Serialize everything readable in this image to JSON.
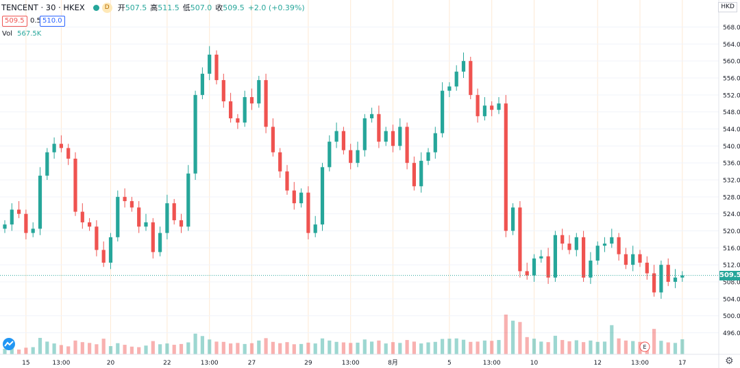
{
  "header": {
    "symbol": "TENCENT · 30 · HKEX",
    "d_label": "D",
    "open_label": "开",
    "open_value": "507.5",
    "high_label": "高",
    "high_value": "511.5",
    "low_label": "低",
    "low_value": "507.0",
    "close_label": "收",
    "close_value": "509.5",
    "change": "+2.0 (+0.39%)"
  },
  "bid": "509.5",
  "spread": "0.5",
  "ask": "510.0",
  "volume": {
    "label": "Vol",
    "value": "567.5K"
  },
  "currency": "HKD",
  "last_price_label": "509.5",
  "event_marker": "E",
  "colors": {
    "up": "#26a69a",
    "down": "#ef5350",
    "grid": "#f0f3fa",
    "session": "#fde9d4",
    "text": "#131722"
  },
  "chart_data": {
    "type": "candlestick",
    "title": "TENCENT · 30 · HKEX",
    "ylabel": "HKD",
    "ylim": [
      493.5,
      570.5
    ],
    "y_ticks": [
      496.0,
      500.0,
      504.0,
      508.0,
      512.0,
      516.0,
      520.0,
      524.0,
      528.0,
      532.0,
      536.0,
      540.0,
      544.0,
      548.0,
      552.0,
      556.0,
      560.0,
      564.0,
      568.0
    ],
    "x_ticks": [
      {
        "label": "15",
        "i": 3
      },
      {
        "label": "13:00",
        "i": 8
      },
      {
        "label": "20",
        "i": 15
      },
      {
        "label": "22",
        "i": 23
      },
      {
        "label": "13:00",
        "i": 29
      },
      {
        "label": "27",
        "i": 35
      },
      {
        "label": "29",
        "i": 43
      },
      {
        "label": "13:00",
        "i": 49
      },
      {
        "label": "8月",
        "i": 55
      },
      {
        "label": "5",
        "i": 63
      },
      {
        "label": "13:00",
        "i": 69
      },
      {
        "label": "10",
        "i": 75
      },
      {
        "label": "12",
        "i": 84
      },
      {
        "label": "13:00",
        "i": 90
      },
      {
        "label": "17",
        "i": 96
      }
    ],
    "last_price": 509.5,
    "closes": [
      521.5,
      525.0,
      524.0,
      519.5,
      520.5,
      533.0,
      538.5,
      540.5,
      539.5,
      537.0,
      524.5,
      522.0,
      521.0,
      515.5,
      512.5,
      518.5,
      528.0,
      527.0,
      525.5,
      521.0,
      522.0,
      515.0,
      519.5,
      526.5,
      522.5,
      521.0,
      533.5,
      552.0,
      557.0,
      561.5,
      555.5,
      550.5,
      546.5,
      545.5,
      551.5,
      550.0,
      555.5,
      544.5,
      538.5,
      534.0,
      529.5,
      526.5,
      529.0,
      519.5,
      521.5,
      535.0,
      541.0,
      543.5,
      539.0,
      536.0,
      539.0,
      546.5,
      547.5,
      541.0,
      543.5,
      540.0,
      544.5,
      536.0,
      530.5,
      536.5,
      538.5,
      543.0,
      553.0,
      554.0,
      557.5,
      560.0,
      552.0,
      547.0,
      549.5,
      548.5,
      550.0,
      520.0,
      525.5,
      510.5,
      509.5,
      513.5,
      514.0,
      509.0,
      519.0,
      517.0,
      515.5,
      518.5,
      509.0,
      513.0,
      516.5,
      517.0,
      518.5,
      514.5,
      512.0,
      514.5,
      512.5,
      510.0,
      505.5,
      512.0,
      508.0,
      509.0,
      509.5
    ],
    "volumes_k": [
      210,
      330,
      180,
      250,
      270,
      620,
      480,
      410,
      350,
      300,
      520,
      460,
      430,
      380,
      590,
      310,
      420,
      360,
      290,
      270,
      330,
      500,
      380,
      410,
      360,
      390,
      450,
      780,
      690,
      560,
      480,
      470,
      410,
      430,
      390,
      420,
      520,
      610,
      470,
      420,
      460,
      380,
      390,
      440,
      410,
      600,
      520,
      470,
      450,
      430,
      440,
      560,
      480,
      520,
      410,
      460,
      430,
      540,
      480,
      410,
      450,
      470,
      580,
      590,
      600,
      550,
      470,
      480,
      520,
      510,
      540,
      1500,
      1270,
      1220,
      650,
      590,
      480,
      460,
      700,
      540,
      490,
      530,
      460,
      520,
      470,
      480,
      1100,
      600,
      520,
      500,
      470,
      420,
      960,
      510,
      450,
      430,
      567.5
    ]
  }
}
